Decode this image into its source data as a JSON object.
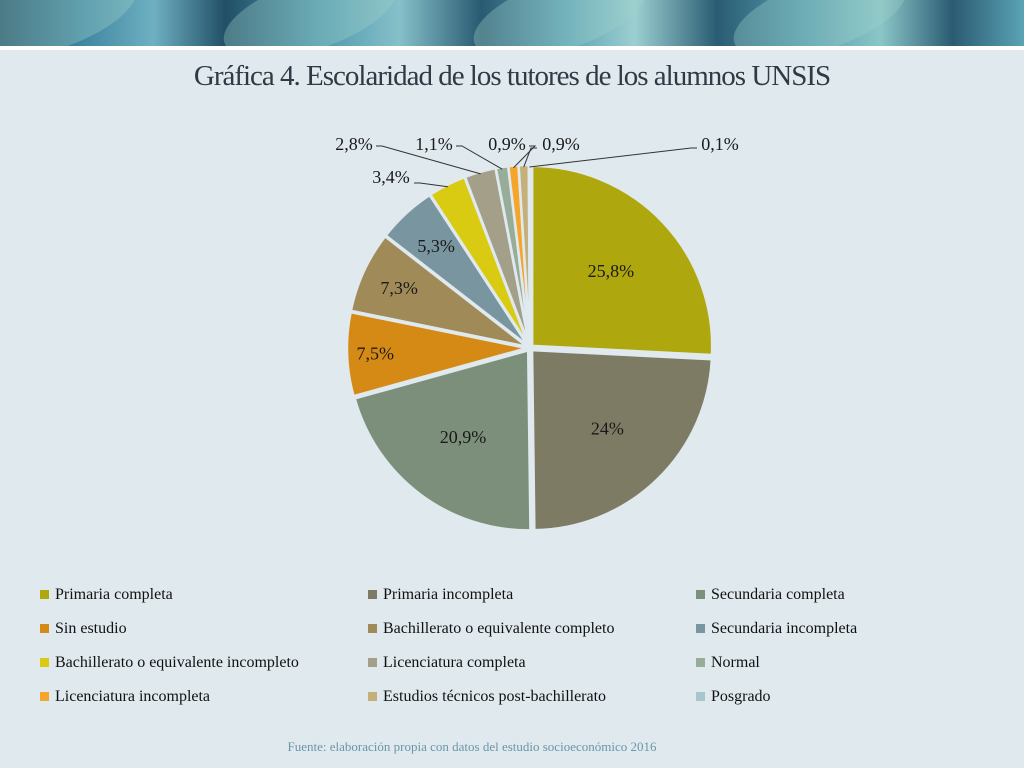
{
  "slide": {
    "title": "Gráfica 4. Escolaridad de los tutores  de los alumnos UNSIS",
    "source": "Fuente: elaboración propia con datos del estudio socioeconómico 2016"
  },
  "chart_data": {
    "type": "pie",
    "title": "Gráfica 4. Escolaridad de los tutores  de los alumnos UNSIS",
    "legend_position": "bottom",
    "slices": [
      {
        "name": "Primaria completa",
        "value": 25.8,
        "label": "25,8%",
        "color": "#aea70d"
      },
      {
        "name": "Primaria incompleta",
        "value": 24.0,
        "label": "24%",
        "color": "#7e7b64"
      },
      {
        "name": "Secundaria completa",
        "value": 20.9,
        "label": "20,9%",
        "color": "#7c8f7b"
      },
      {
        "name": "Sin estudio",
        "value": 7.5,
        "label": "7,5%",
        "color": "#d68a16"
      },
      {
        "name": "Bachillerato o equivalente completo",
        "value": 7.3,
        "label": "7,3%",
        "color": "#a08a58"
      },
      {
        "name": "Secundaria incompleta",
        "value": 5.3,
        "label": "5,3%",
        "color": "#7895a0"
      },
      {
        "name": "Bachillerato o equivalente incompleto",
        "value": 3.4,
        "label": "3,4%",
        "color": "#d9ca12"
      },
      {
        "name": "Licenciatura completa",
        "value": 2.8,
        "label": "2,8%",
        "color": "#a39f89"
      },
      {
        "name": "Normal",
        "value": 1.1,
        "label": "1,1%",
        "color": "#97ad98"
      },
      {
        "name": "Licenciatura incompleta",
        "value": 0.9,
        "label": "0,9%",
        "color": "#f4a52a"
      },
      {
        "name": "Estudios técnicos post-bachillerato",
        "value": 0.9,
        "label": "0,9%",
        "color": "#c6b07a"
      },
      {
        "name": "Posgrado",
        "value": 0.1,
        "label": "0,1%",
        "color": "#a8c4cc"
      }
    ]
  }
}
